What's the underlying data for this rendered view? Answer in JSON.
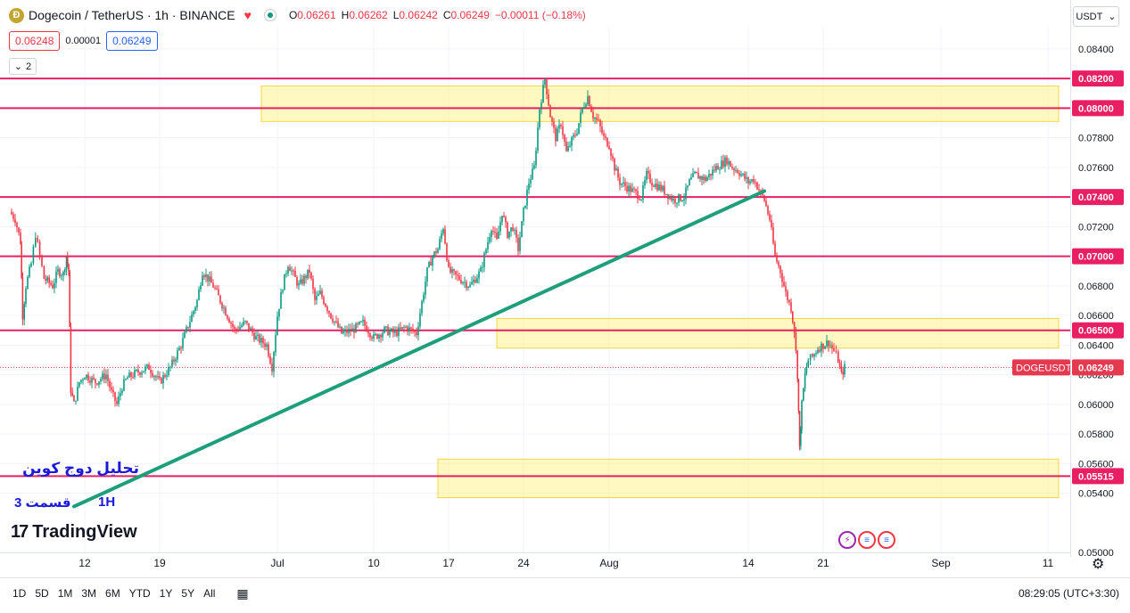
{
  "header": {
    "title": "Dogecoin / TetherUS · 1h · BINANCE",
    "logo_letter": "Ð",
    "ohlc": [
      {
        "k": "O",
        "v": "0.06261"
      },
      {
        "k": "H",
        "v": "0.06262"
      },
      {
        "k": "L",
        "v": "0.06242"
      },
      {
        "k": "C",
        "v": "0.06249"
      },
      {
        "k": "",
        "v": "−0.00011 (−0.18%)"
      }
    ],
    "sell_price": "0.06248",
    "spread": "0.00001",
    "buy_price": "0.06249",
    "indicators_count": "2",
    "currency": "USDT"
  },
  "annotations": {
    "title_fa": "تحلیل دوج کوین",
    "part_fa": "قسمت 3",
    "timeframe": "1H"
  },
  "watermark": "TradingView",
  "bottom": {
    "ranges": [
      "1D",
      "5D",
      "1M",
      "3M",
      "6M",
      "YTD",
      "1Y",
      "5Y",
      "All"
    ],
    "clock": "08:29:05 (UTC+3:30)"
  },
  "colors": {
    "up": "#089981",
    "down": "#f23645",
    "level": "#e91e63",
    "zone_fill": "#fff176",
    "trendline": "#1e9e7a",
    "symbol_badge": "#e53950"
  },
  "chart_data": {
    "type": "candlestick",
    "symbol": "DOGEUSDT",
    "timeframe": "1h",
    "y_range": [
      0.05,
      0.0855
    ],
    "y_ticks": [
      "0.05000",
      "0.05400",
      "0.05600",
      "0.05800",
      "0.06000",
      "0.06200",
      "0.06400",
      "0.06600",
      "0.06800",
      "0.07200",
      "0.07600",
      "0.07800",
      "0.08400"
    ],
    "x_ticks": [
      {
        "label": "12",
        "day": 0
      },
      {
        "label": "19",
        "day": 7
      },
      {
        "label": "Jul",
        "day": 18
      },
      {
        "label": "10",
        "day": 27
      },
      {
        "label": "17",
        "day": 34
      },
      {
        "label": "24",
        "day": 41
      },
      {
        "label": "Aug",
        "day": 49
      },
      {
        "label": "14",
        "day": 62
      },
      {
        "label": "21",
        "day": 69
      },
      {
        "label": "Sep",
        "day": 80
      },
      {
        "label": "11",
        "day": 90
      }
    ],
    "horizontal_levels": [
      "0.08200",
      "0.08000",
      "0.07400",
      "0.07000",
      "0.06500",
      "0.05515"
    ],
    "current_price": "0.06249",
    "zones": [
      {
        "from_day": 16.5,
        "to_day": 91,
        "low": 0.0791,
        "high": 0.0815
      },
      {
        "from_day": 38.5,
        "to_day": 91,
        "low": 0.0638,
        "high": 0.0658
      },
      {
        "from_day": 33,
        "to_day": 91,
        "low": 0.0537,
        "high": 0.0563
      }
    ],
    "trendline": {
      "from": {
        "day": -1.0,
        "price": 0.0531
      },
      "to": {
        "day": 63.5,
        "price": 0.0744
      }
    },
    "price_path": [
      [
        -7.0,
        0.073
      ],
      [
        -6.5,
        0.0725
      ],
      [
        -6.0,
        0.071
      ],
      [
        -5.8,
        0.066
      ],
      [
        -5.5,
        0.068
      ],
      [
        -5.0,
        0.0695
      ],
      [
        -4.6,
        0.0715
      ],
      [
        -4.2,
        0.07
      ],
      [
        -3.8,
        0.0685
      ],
      [
        -3.0,
        0.068
      ],
      [
        -2.5,
        0.069
      ],
      [
        -2.0,
        0.0688
      ],
      [
        -1.7,
        0.07
      ],
      [
        -1.5,
        0.069
      ],
      [
        -1.3,
        0.061
      ],
      [
        -1.0,
        0.06
      ],
      [
        -0.5,
        0.0615
      ],
      [
        0.0,
        0.062
      ],
      [
        1.0,
        0.0615
      ],
      [
        2.0,
        0.062
      ],
      [
        2.5,
        0.0608
      ],
      [
        3.0,
        0.06
      ],
      [
        3.5,
        0.0612
      ],
      [
        4.0,
        0.0618
      ],
      [
        5.0,
        0.0622
      ],
      [
        6.0,
        0.0625
      ],
      [
        7.0,
        0.0615
      ],
      [
        8.0,
        0.0625
      ],
      [
        9.0,
        0.064
      ],
      [
        10.0,
        0.066
      ],
      [
        10.5,
        0.067
      ],
      [
        11.0,
        0.069
      ],
      [
        12.0,
        0.068
      ],
      [
        13.0,
        0.0665
      ],
      [
        14.0,
        0.065
      ],
      [
        15.0,
        0.0655
      ],
      [
        16.0,
        0.0645
      ],
      [
        17.0,
        0.064
      ],
      [
        17.5,
        0.0625
      ],
      [
        18.0,
        0.066
      ],
      [
        18.5,
        0.068
      ],
      [
        19.0,
        0.0695
      ],
      [
        20.0,
        0.068
      ],
      [
        21.0,
        0.069
      ],
      [
        21.5,
        0.067
      ],
      [
        22.0,
        0.0675
      ],
      [
        23.0,
        0.066
      ],
      [
        24.0,
        0.0648
      ],
      [
        25.0,
        0.065
      ],
      [
        26.0,
        0.0655
      ],
      [
        27.0,
        0.0645
      ],
      [
        28.0,
        0.065
      ],
      [
        29.0,
        0.0648
      ],
      [
        30.0,
        0.0652
      ],
      [
        31.0,
        0.0648
      ],
      [
        32.0,
        0.069
      ],
      [
        32.5,
        0.07
      ],
      [
        33.0,
        0.0705
      ],
      [
        33.5,
        0.072
      ],
      [
        34.0,
        0.069
      ],
      [
        35.0,
        0.0685
      ],
      [
        36.0,
        0.068
      ],
      [
        37.0,
        0.069
      ],
      [
        38.0,
        0.072
      ],
      [
        38.5,
        0.071
      ],
      [
        39.0,
        0.073
      ],
      [
        39.5,
        0.0715
      ],
      [
        40.0,
        0.072
      ],
      [
        40.5,
        0.0705
      ],
      [
        41.0,
        0.073
      ],
      [
        41.5,
        0.075
      ],
      [
        42.0,
        0.076
      ],
      [
        42.5,
        0.08
      ],
      [
        43.0,
        0.082
      ],
      [
        43.5,
        0.0795
      ],
      [
        44.0,
        0.078
      ],
      [
        44.5,
        0.079
      ],
      [
        45.0,
        0.077
      ],
      [
        45.5,
        0.0778
      ],
      [
        46.0,
        0.0785
      ],
      [
        46.5,
        0.08
      ],
      [
        47.0,
        0.0808
      ],
      [
        47.5,
        0.0795
      ],
      [
        48.0,
        0.079
      ],
      [
        48.5,
        0.078
      ],
      [
        49.0,
        0.0775
      ],
      [
        49.5,
        0.076
      ],
      [
        50.0,
        0.075
      ],
      [
        51.0,
        0.0745
      ],
      [
        52.0,
        0.074
      ],
      [
        52.5,
        0.0755
      ],
      [
        53.0,
        0.075
      ],
      [
        54.0,
        0.0745
      ],
      [
        55.0,
        0.0738
      ],
      [
        56.0,
        0.074
      ],
      [
        56.5,
        0.075
      ],
      [
        57.0,
        0.0755
      ],
      [
        58.0,
        0.0752
      ],
      [
        59.0,
        0.076
      ],
      [
        60.0,
        0.0765
      ],
      [
        60.5,
        0.076
      ],
      [
        61.0,
        0.0758
      ],
      [
        62.0,
        0.075
      ],
      [
        62.5,
        0.0752
      ],
      [
        63.0,
        0.0745
      ],
      [
        63.5,
        0.0738
      ],
      [
        64.0,
        0.0725
      ],
      [
        64.5,
        0.07
      ],
      [
        65.0,
        0.069
      ],
      [
        65.5,
        0.0675
      ],
      [
        66.0,
        0.0665
      ],
      [
        66.3,
        0.065
      ],
      [
        66.6,
        0.062
      ],
      [
        66.8,
        0.057
      ],
      [
        67.0,
        0.06
      ],
      [
        67.3,
        0.062
      ],
      [
        67.6,
        0.063
      ],
      [
        68.0,
        0.0632
      ],
      [
        68.5,
        0.0638
      ],
      [
        69.0,
        0.064
      ],
      [
        69.5,
        0.0642
      ],
      [
        70.0,
        0.0636
      ],
      [
        70.4,
        0.063
      ],
      [
        70.7,
        0.062
      ],
      [
        71.0,
        0.0625
      ]
    ]
  }
}
